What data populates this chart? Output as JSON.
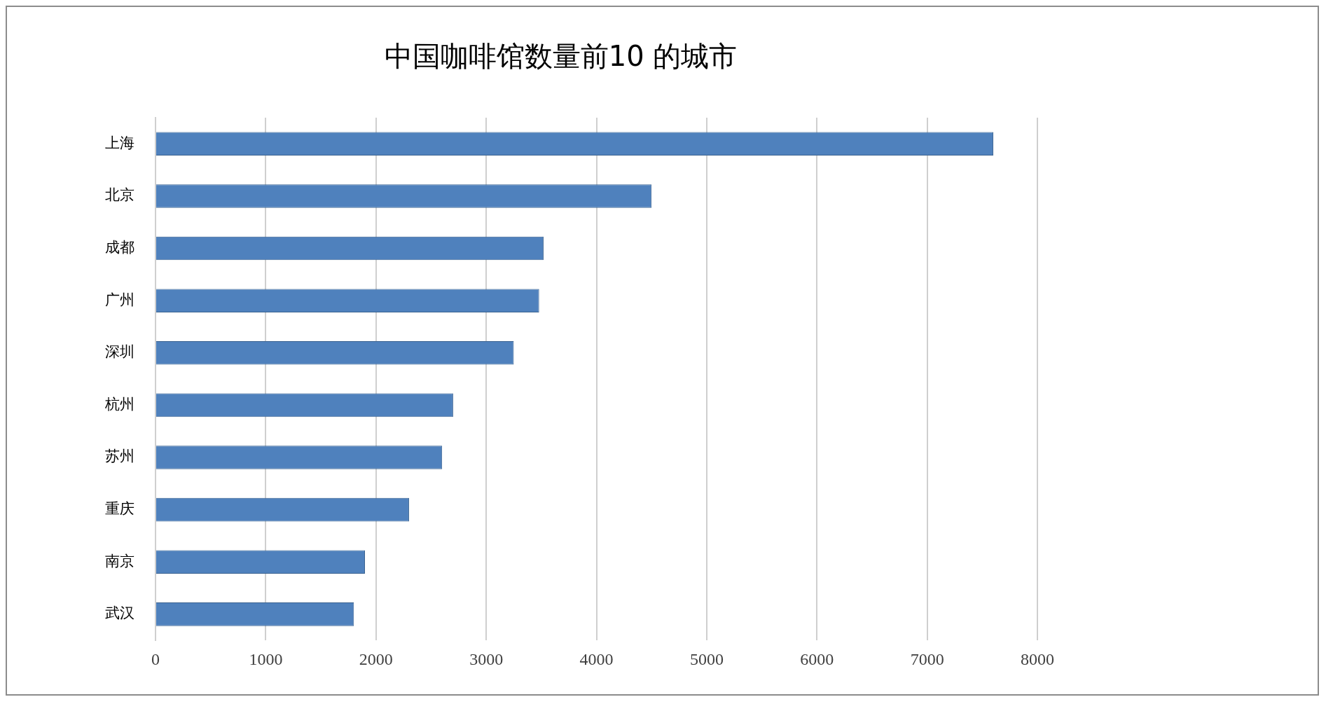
{
  "chart_data": {
    "type": "bar",
    "orientation": "horizontal",
    "title": "中国咖啡馆数量前10 的城市",
    "categories": [
      "上海",
      "北京",
      "成都",
      "广州",
      "深圳",
      "杭州",
      "苏州",
      "重庆",
      "南京",
      "武汉"
    ],
    "values": [
      7600,
      4500,
      3520,
      3480,
      3250,
      2700,
      2600,
      2300,
      1900,
      1800
    ],
    "color": "#4f81bd",
    "xlim": [
      0,
      8000
    ],
    "xticks": [
      0,
      1000,
      2000,
      3000,
      4000,
      5000,
      6000,
      7000,
      8000
    ],
    "grid": "x",
    "legend": false
  }
}
